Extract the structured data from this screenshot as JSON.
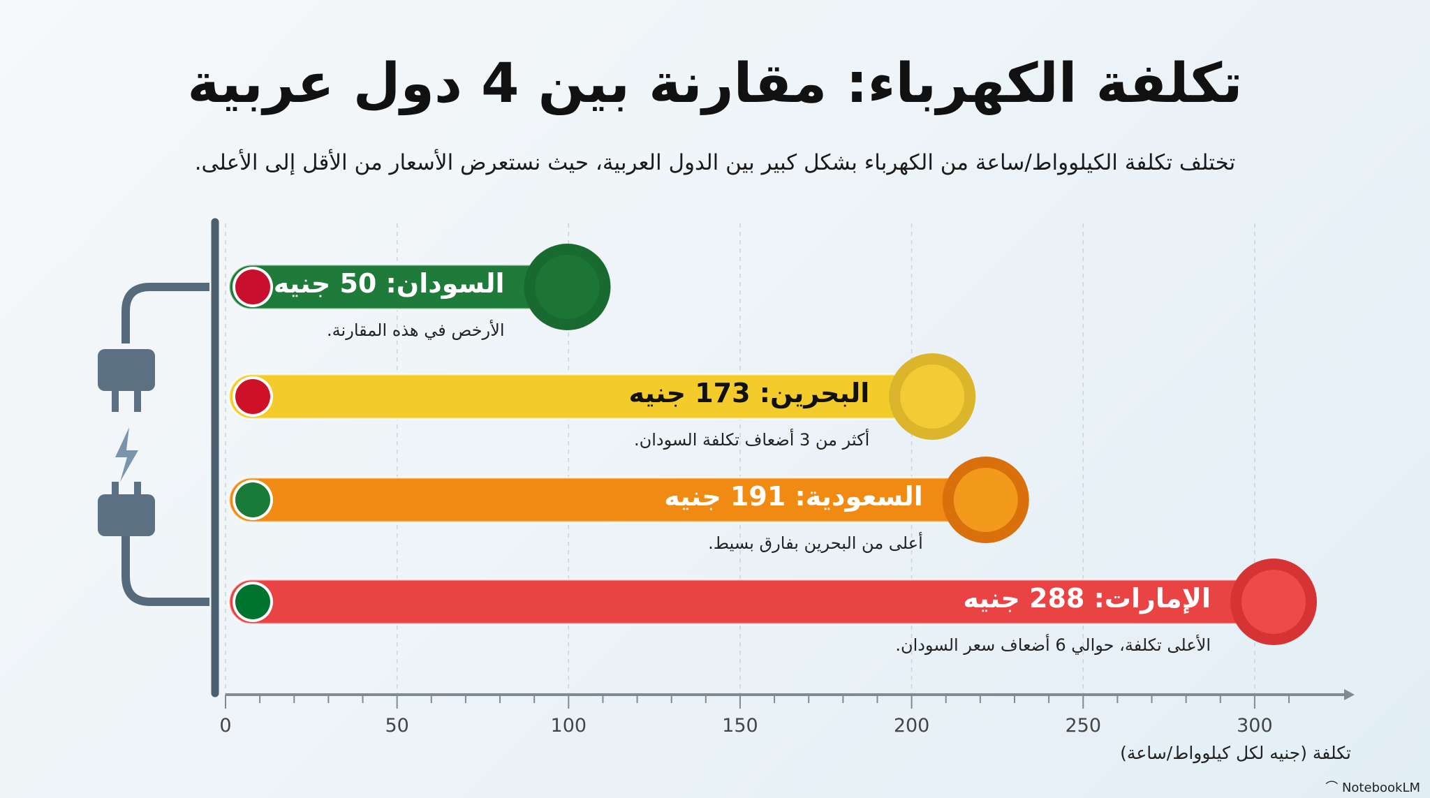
{
  "title": "تكلفة الكهرباء: مقارنة بين 4 دول عربية",
  "subtitle": "تختلف تكلفة الكيلوواط/ساعة من الكهرباء بشكل كبير بين الدول العربية، حيث نستعرض الأسعار من الأقل إلى الأعلى.",
  "brand": "NotebookLM",
  "chart_data": {
    "type": "bar",
    "orientation": "horizontal",
    "categories": [
      "السودان",
      "البحرين",
      "السعودية",
      "الإمارات"
    ],
    "values": [
      50,
      173,
      191,
      288
    ],
    "labels": [
      "السودان: 50 جنيه",
      "البحرين: 173 جنيه",
      "السعودية: 191 جنيه",
      "الإمارات: 288 جنيه"
    ],
    "notes": [
      "الأرخص في هذه المقارنة.",
      "أكثر من 3 أضعاف تكلفة السودان.",
      "أعلى من البحرين بفارق بسيط.",
      "الأعلى تكلفة، حوالي 6 أضعاف سعر السودان."
    ],
    "colors": [
      "#1e7b3a",
      "#f3cb2b",
      "#f08a12",
      "#ea4343"
    ],
    "xlabel": "تكلفة (جنيه لكل كيلوواط/ساعة)",
    "xlim": [
      0,
      320
    ],
    "xticks": [
      "0",
      "50",
      "100",
      "150",
      "200",
      "250",
      "300"
    ],
    "grid": true
  }
}
